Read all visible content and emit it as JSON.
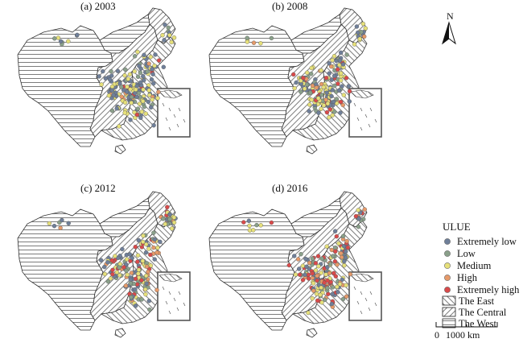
{
  "panels": [
    {
      "label": "(a) 2003",
      "year": 2003
    },
    {
      "label": "(b) 2008",
      "year": 2008
    },
    {
      "label": "(c) 2012",
      "year": 2012
    },
    {
      "label": "(d) 2016",
      "year": 2016
    }
  ],
  "legend": {
    "title": "ULUE",
    "levels": [
      {
        "label": "Extremely low",
        "color": "#6f7f99"
      },
      {
        "label": "Low",
        "color": "#8aa08a"
      },
      {
        "label": "Medium",
        "color": "#e6e07a"
      },
      {
        "label": "High",
        "color": "#e69a6a"
      },
      {
        "label": "Extremely high",
        "color": "#d94a4a"
      }
    ],
    "regions": [
      {
        "label": "The East",
        "pattern": "diagonal-right"
      },
      {
        "label": "The Central",
        "pattern": "diagonal-left"
      },
      {
        "label": "The West",
        "pattern": "horizontal"
      }
    ]
  },
  "north_arrow": {
    "label": "N"
  },
  "scale_bar": {
    "start": "0",
    "end": "1000 km"
  },
  "colors": {
    "outline": "#333333",
    "hatch": "#444444",
    "inset_frame": "#555555"
  }
}
